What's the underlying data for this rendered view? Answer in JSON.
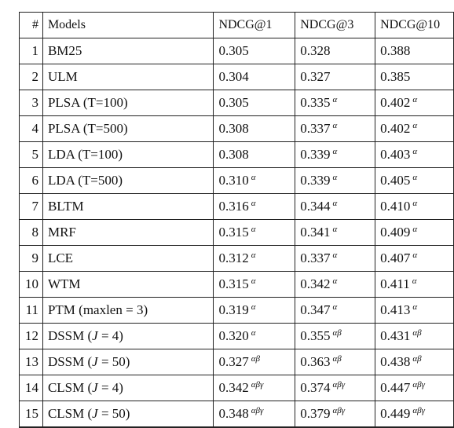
{
  "table": {
    "headers": {
      "num": "#",
      "model": "Models",
      "ndcg1": "NDCG@1",
      "ndcg3": "NDCG@3",
      "ndcg10": "NDCG@10"
    },
    "rows": [
      {
        "num": "1",
        "model": "BM25",
        "v1": "0.305",
        "s1": "",
        "v2": "0.328",
        "s2": "",
        "v3": "0.388",
        "s3": "",
        "bold": false
      },
      {
        "num": "2",
        "model": "ULM",
        "v1": "0.304",
        "s1": "",
        "v2": "0.327",
        "s2": "",
        "v3": "0.385",
        "s3": "",
        "bold": false
      },
      {
        "num": "3",
        "model": "PLSA (T=100)",
        "v1": "0.305",
        "s1": "",
        "v2": "0.335",
        "s2": "α",
        "v3": "0.402",
        "s3": "α",
        "bold": false
      },
      {
        "num": "4",
        "model": "PLSA (T=500)",
        "v1": "0.308",
        "s1": "",
        "v2": "0.337",
        "s2": "α",
        "v3": "0.402",
        "s3": "α",
        "bold": false
      },
      {
        "num": "5",
        "model": "LDA (T=100)",
        "v1": "0.308",
        "s1": "",
        "v2": "0.339",
        "s2": "α",
        "v3": "0.403",
        "s3": "α",
        "bold": false
      },
      {
        "num": "6",
        "model": "LDA (T=500)",
        "v1": "0.310",
        "s1": "α",
        "v2": "0.339",
        "s2": "α",
        "v3": "0.405",
        "s3": "α",
        "bold": false
      },
      {
        "num": "7",
        "model": "BLTM",
        "v1": "0.316",
        "s1": "α",
        "v2": "0.344",
        "s2": "α",
        "v3": "0.410",
        "s3": "α",
        "bold": false
      },
      {
        "num": "8",
        "model": "MRF",
        "v1": "0.315",
        "s1": "α",
        "v2": "0.341",
        "s2": "α",
        "v3": "0.409",
        "s3": "α",
        "bold": false
      },
      {
        "num": "9",
        "model": "LCE",
        "v1": "0.312",
        "s1": "α",
        "v2": "0.337",
        "s2": "α",
        "v3": "0.407",
        "s3": "α",
        "bold": false
      },
      {
        "num": "10",
        "model": "WTM",
        "v1": "0.315",
        "s1": "α",
        "v2": "0.342",
        "s2": "α",
        "v3": "0.411",
        "s3": "α",
        "bold": false
      },
      {
        "num": "11",
        "model": "PTM (maxlen = 3)",
        "v1": "0.319",
        "s1": "α",
        "v2": "0.347",
        "s2": "α",
        "v3": "0.413",
        "s3": "α",
        "bold": false
      },
      {
        "num": "12",
        "model": "DSSM (J = 4)",
        "v1": "0.320",
        "s1": "α",
        "v2": "0.355",
        "s2": "αβ",
        "v3": "0.431",
        "s3": "αβ",
        "bold": false
      },
      {
        "num": "13",
        "model": "DSSM (J = 50)",
        "v1": "0.327",
        "s1": "αβ",
        "v2": "0.363",
        "s2": "αβ",
        "v3": "0.438",
        "s3": "αβ",
        "bold": false
      },
      {
        "num": "14",
        "model": "CLSM (J = 4)",
        "v1": "0.342",
        "s1": "αβγ",
        "v2": "0.374",
        "s2": "αβγ",
        "v3": "0.447",
        "s3": "αβγ",
        "bold": false
      },
      {
        "num": "15",
        "model": "CLSM (J = 50)",
        "v1": "0.348",
        "s1": "αβγ",
        "v2": "0.379",
        "s2": "αβγ",
        "v3": "0.449",
        "s3": "αβγ",
        "bold": true
      }
    ]
  }
}
